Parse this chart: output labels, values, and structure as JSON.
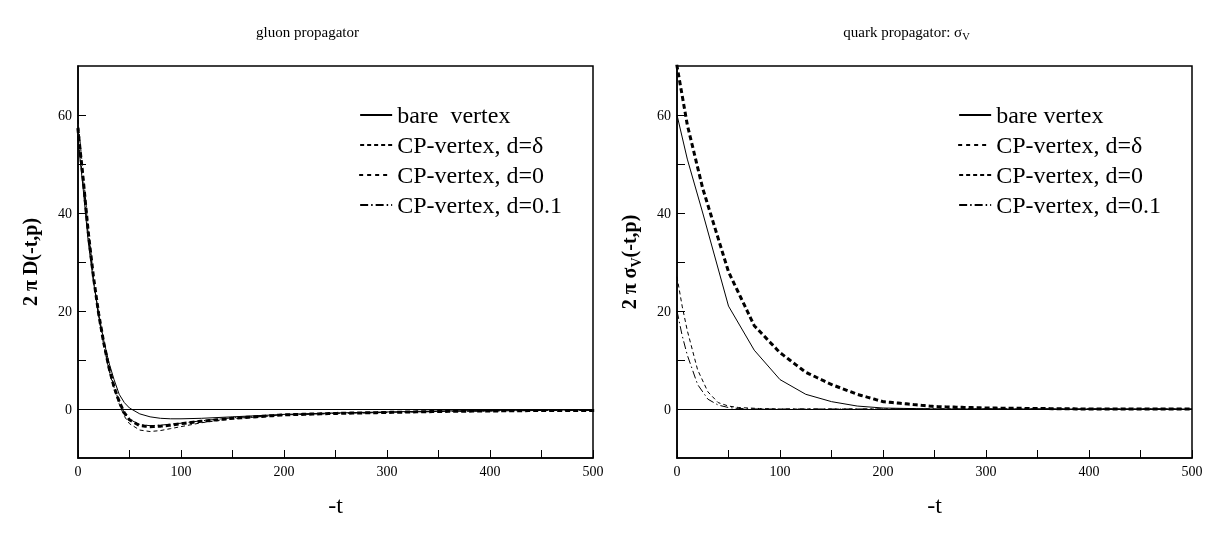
{
  "chart_data": [
    {
      "type": "line",
      "title": "gluon propagator",
      "xlabel": "-t",
      "ylabel": "2 π D(-t,p)",
      "xlim": [
        0,
        500
      ],
      "ylim": [
        -10,
        70
      ],
      "xticks": [
        0,
        {
          "value": 50,
          "label": null
        },
        100,
        {
          "value": 150,
          "label": null
        },
        200,
        {
          "value": 250,
          "label": null
        },
        300,
        {
          "value": 350,
          "label": null
        },
        400,
        {
          "value": 450,
          "label": null
        },
        500
      ],
      "yticks": [
        0,
        {
          "value": 10,
          "label": null
        },
        20,
        {
          "value": 30,
          "label": null
        },
        40,
        {
          "value": 50,
          "label": null
        },
        60
      ],
      "legend": "top right",
      "grid": false,
      "ref_lines": [
        {
          "axis": "y",
          "value": 0,
          "color": "#000000"
        }
      ],
      "series": [
        {
          "name": "bare  vertex",
          "color": "#000000",
          "line_style": "solid",
          "x": [
            0,
            5,
            10,
            15,
            20,
            25,
            30,
            35,
            40,
            45,
            50,
            60,
            70,
            80,
            90,
            100,
            120,
            150,
            200,
            250,
            300,
            350,
            400,
            450,
            500
          ],
          "values": [
            55,
            45,
            34,
            26,
            19.5,
            14,
            9.5,
            6,
            3,
            1.3,
            0.2,
            -1,
            -1.6,
            -1.9,
            -2,
            -2,
            -1.9,
            -1.6,
            -1.1,
            -0.8,
            -0.6,
            -0.4,
            -0.3,
            -0.2,
            -0.2
          ]
        },
        {
          "name": "CP-vertex, d=δ",
          "color": "#000000",
          "line_style": "dashed",
          "x": [
            0,
            5,
            10,
            15,
            20,
            25,
            30,
            35,
            40,
            45,
            50,
            60,
            70,
            80,
            90,
            100,
            120,
            150,
            200,
            250,
            300,
            350,
            400,
            450,
            500
          ],
          "values": [
            59,
            48,
            37,
            27,
            19,
            13,
            8,
            4,
            1,
            -1.5,
            -3,
            -4.3,
            -4.6,
            -4.4,
            -4,
            -3.6,
            -2.8,
            -2,
            -1.2,
            -0.9,
            -0.7,
            -0.5,
            -0.4,
            -0.3,
            -0.3
          ]
        },
        {
          "name": "CP-vertex, d=0",
          "color": "#000000",
          "line_style": "dotted",
          "x": [
            0,
            5,
            10,
            15,
            20,
            25,
            30,
            35,
            40,
            45,
            50,
            60,
            70,
            80,
            90,
            100,
            120,
            150,
            200,
            250,
            300,
            350,
            400,
            450,
            500
          ],
          "values": [
            57,
            47,
            36,
            27,
            19.5,
            13.5,
            8.5,
            4.5,
            1.5,
            -0.8,
            -2.2,
            -3.4,
            -3.6,
            -3.5,
            -3.3,
            -3,
            -2.5,
            -1.9,
            -1.2,
            -0.9,
            -0.7,
            -0.5,
            -0.4,
            -0.3,
            -0.3
          ]
        },
        {
          "name": "CP-vertex, d=0.1",
          "color": "#000000",
          "line_style": "dashdot",
          "x": [
            0,
            5,
            10,
            15,
            20,
            25,
            30,
            35,
            40,
            45,
            50,
            60,
            70,
            80,
            90,
            100,
            120,
            150,
            200,
            250,
            300,
            350,
            400,
            450,
            500
          ],
          "values": [
            56,
            46,
            35.5,
            26.5,
            19,
            13,
            8.5,
            4.5,
            1.5,
            -0.8,
            -2.1,
            -3.2,
            -3.4,
            -3.3,
            -3.1,
            -2.9,
            -2.4,
            -1.8,
            -1.2,
            -0.9,
            -0.7,
            -0.5,
            -0.4,
            -0.3,
            -0.3
          ]
        }
      ]
    },
    {
      "type": "line",
      "title": "quark propagator: σ$_{V}$",
      "xlabel": "-t",
      "ylabel": "2 π σ$_{V}$(-t,p)",
      "xlim": [
        0,
        500
      ],
      "ylim": [
        -10,
        70
      ],
      "xticks": [
        0,
        {
          "value": 50,
          "label": null
        },
        100,
        {
          "value": 150,
          "label": null
        },
        200,
        {
          "value": 250,
          "label": null
        },
        300,
        {
          "value": 350,
          "label": null
        },
        400,
        {
          "value": 450,
          "label": null
        },
        500
      ],
      "yticks": [
        0,
        {
          "value": 10,
          "label": null
        },
        20,
        {
          "value": 30,
          "label": null
        },
        40,
        {
          "value": 50,
          "label": null
        },
        60
      ],
      "legend": "top right",
      "grid": false,
      "ref_lines": [
        {
          "axis": "y",
          "value": 0,
          "color": "#000000"
        }
      ],
      "series": [
        {
          "name": "bare vertex",
          "color": "#000000",
          "line_style": "solid",
          "x": [
            0,
            10,
            25,
            50,
            75,
            100,
            125,
            150,
            175,
            200,
            250,
            300,
            400,
            500
          ],
          "values": [
            60,
            51,
            40,
            21,
            12,
            6,
            3,
            1.5,
            0.6,
            0.2,
            0,
            0,
            0,
            0
          ]
        },
        {
          "name": "CP-vertex, d=δ",
          "color": "#000000",
          "line_style": "dotted",
          "x": [
            0,
            10,
            25,
            50,
            75,
            100,
            125,
            150,
            175,
            200,
            225,
            250,
            300,
            400,
            500
          ],
          "values": [
            70,
            58,
            45,
            28,
            17,
            11.5,
            7.5,
            5,
            3,
            1.5,
            1,
            0.5,
            0.2,
            0,
            0
          ]
        },
        {
          "name": "CP-vertex, d=0",
          "color": "#000000",
          "line_style": "dashed",
          "x": [
            0,
            5,
            10,
            20,
            30,
            40,
            50,
            60,
            80,
            100,
            150,
            200,
            300,
            500
          ],
          "values": [
            27,
            21,
            16,
            8,
            3.5,
            1.3,
            0.6,
            0.3,
            0.1,
            0,
            0,
            0,
            0,
            0
          ]
        },
        {
          "name": "CP-vertex, d=0.1",
          "color": "#000000",
          "line_style": "dashdot",
          "x": [
            0,
            5,
            10,
            20,
            30,
            40,
            50,
            60,
            80,
            100,
            200,
            500
          ],
          "values": [
            20,
            15,
            11,
            5,
            2,
            0.8,
            0.3,
            0.1,
            0,
            0,
            0,
            0
          ]
        }
      ]
    }
  ]
}
